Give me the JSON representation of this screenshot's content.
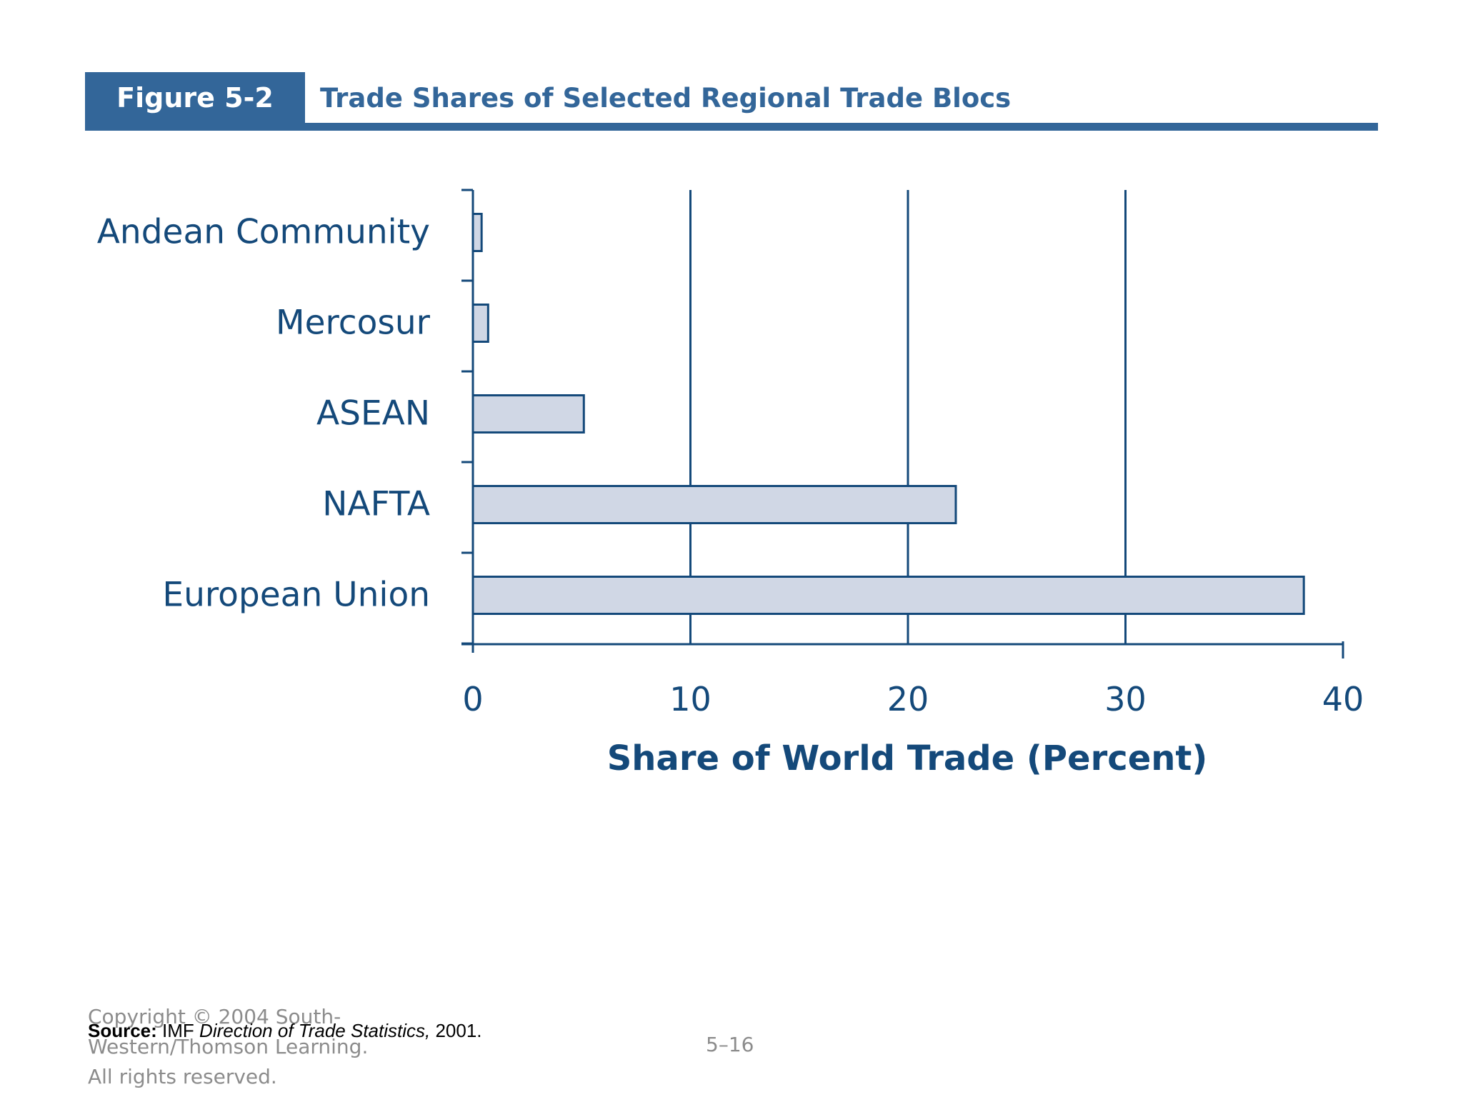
{
  "header": {
    "figure_label": "Figure 5-2",
    "title": "Trade Shares of Selected Regional Trade Blocs"
  },
  "colors": {
    "accent": "#336699",
    "bar_fill": "#d0d7e5",
    "bar_stroke": "#14497a",
    "axis": "#14497a",
    "footer_text": "#8c8c8c"
  },
  "chart_data": {
    "type": "bar",
    "orientation": "horizontal",
    "categories": [
      "Andean Community",
      "Mercosur",
      "ASEAN",
      "NAFTA",
      "European Union"
    ],
    "values": [
      0.4,
      0.7,
      5.1,
      22.2,
      38.2
    ],
    "xlabel": "Share of World Trade (Percent)",
    "xlim": [
      0,
      40
    ],
    "xticks": [
      0,
      10,
      20,
      30,
      40
    ],
    "grid": "vertical lines at 10, 20, 30",
    "legend": "none"
  },
  "footer": {
    "copyright_lines": [
      "Copyright © 2004 South-",
      "Western/Thomson Learning.",
      "All rights reserved."
    ],
    "source_label": "Source:",
    "source_org": "IMF",
    "source_title": "Direction of Trade Statistics,",
    "source_year": "2001.",
    "page_number": "5–16"
  }
}
